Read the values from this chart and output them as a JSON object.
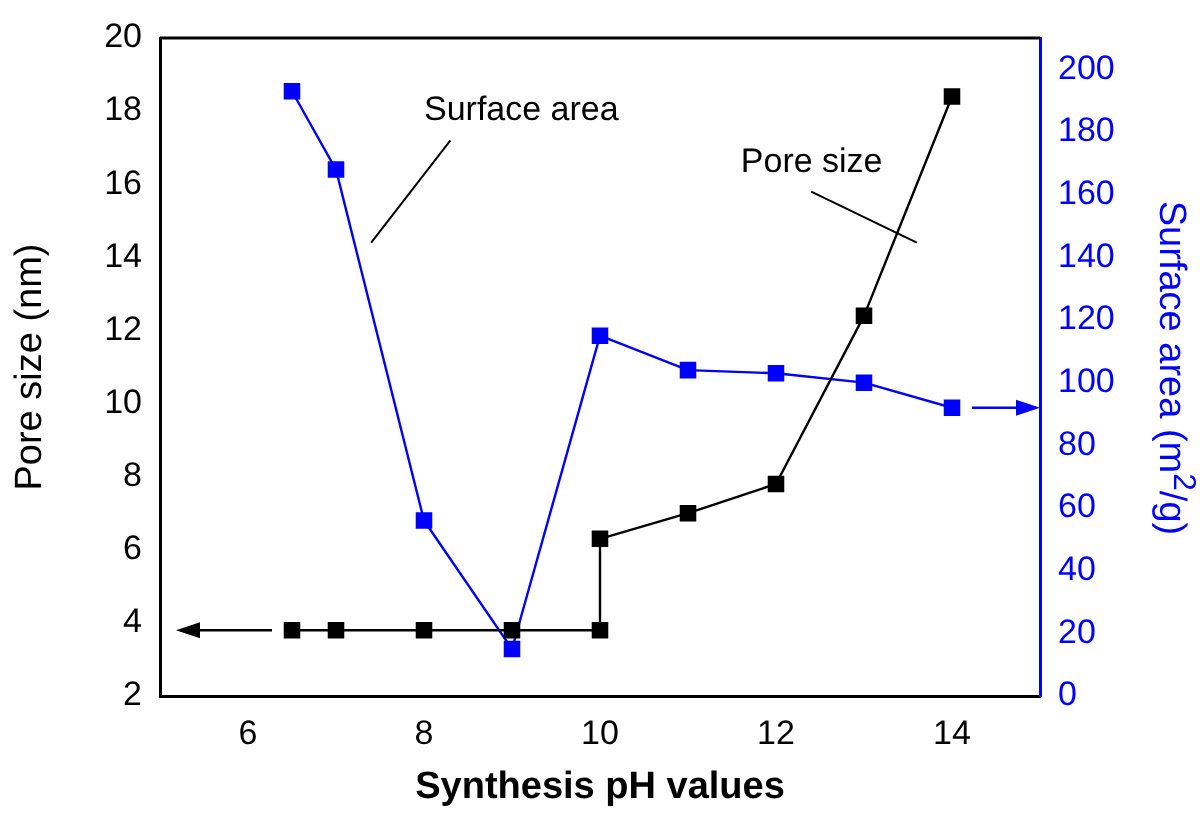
{
  "chart_data": {
    "type": "line",
    "xlabel": "Synthesis pH values",
    "ylabel": "Pore size (nm)",
    "y2label": "Surface area (m$^{2}$/g)",
    "xlim": [
      5,
      15
    ],
    "xticks": [
      6,
      8,
      10,
      12,
      14
    ],
    "ylim": [
      2,
      20
    ],
    "yticks": [
      2,
      4,
      6,
      8,
      10,
      12,
      14,
      16,
      18,
      20
    ],
    "y2lim": [
      0,
      210
    ],
    "y2ticks": [
      0,
      20,
      40,
      60,
      80,
      100,
      120,
      140,
      160,
      180,
      200
    ],
    "marker": "square",
    "grid": false,
    "legend": false,
    "series": [
      {
        "name": "Pore size",
        "color": "#000000",
        "x": [
          6.5,
          7,
          8,
          9,
          10,
          10,
          11,
          12,
          13,
          14
        ],
        "values": [
          3.8,
          3.8,
          3.8,
          3.8,
          3.8,
          6.3,
          7.0,
          7.8,
          12.4,
          18.4
        ]
      },
      {
        "name": "Surface area",
        "color": "#0000ff",
        "axis": "y2",
        "x": [
          6.5,
          7,
          8,
          9,
          10,
          11,
          12,
          13,
          14
        ],
        "values": [
          193,
          168,
          56,
          15,
          115,
          104,
          103,
          100,
          92
        ]
      }
    ]
  }
}
